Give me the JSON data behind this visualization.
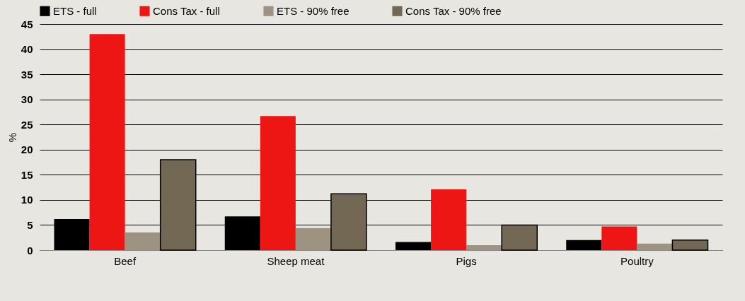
{
  "chart_data": {
    "type": "bar",
    "ylabel": "%",
    "categories": [
      "Beef",
      "Sheep meat",
      "Pigs",
      "Poultry"
    ],
    "series": [
      {
        "name": "ETS - full",
        "color": "#000000",
        "values": [
          6.2,
          6.7,
          1.6,
          2.0
        ]
      },
      {
        "name": "Cons Tax - full",
        "color": "#ee1515",
        "values": [
          43.0,
          26.7,
          12.1,
          4.7
        ]
      },
      {
        "name": "ETS - 90% free",
        "color": "#9e9380",
        "values": [
          3.5,
          4.4,
          1.0,
          1.3
        ]
      },
      {
        "name": "Cons Tax - 90% free",
        "color": "#736853",
        "values": [
          18.0,
          11.2,
          5.0,
          2.0
        ]
      }
    ],
    "ylim": [
      0,
      45
    ],
    "yticks": [
      0,
      5,
      10,
      15,
      20,
      25,
      30,
      35,
      40,
      45
    ],
    "grid": "y",
    "legend": "top"
  }
}
